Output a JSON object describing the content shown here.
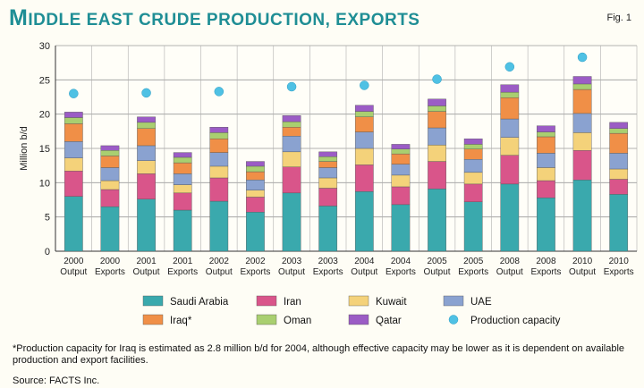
{
  "title_first": "M",
  "title_rest": "IDDLE EAST CRUDE PRODUCTION, EXPORTS",
  "fig_label": "Fig. 1",
  "footnote": "*Production capacity for Iraq is estimated as 2.8 million b/d for 2004, although effective capacity may be lower as it is dependent on available production and export facilities.",
  "source": "Source: FACTS Inc.",
  "chart_data": {
    "type": "bar",
    "stacked": true,
    "ylabel": "Million b/d",
    "ylim": [
      0,
      30
    ],
    "yticks": [
      0,
      5,
      10,
      15,
      20,
      25,
      30
    ],
    "grid": true,
    "categories": [
      [
        "2000",
        "Output"
      ],
      [
        "2000",
        "Exports"
      ],
      [
        "2001",
        "Output"
      ],
      [
        "2001",
        "Exports"
      ],
      [
        "2002",
        "Output"
      ],
      [
        "2002",
        "Exports"
      ],
      [
        "2003",
        "Output"
      ],
      [
        "2003",
        "Exports"
      ],
      [
        "2004",
        "Output"
      ],
      [
        "2004",
        "Exports"
      ],
      [
        "2005",
        "Output"
      ],
      [
        "2005",
        "Exports"
      ],
      [
        "2008",
        "Output"
      ],
      [
        "2008",
        "Exports"
      ],
      [
        "2010",
        "Output"
      ],
      [
        "2010",
        "Exports"
      ]
    ],
    "series": [
      {
        "name": "Saudi Arabia",
        "color": "#3aa9ad",
        "values": [
          8.0,
          6.5,
          7.6,
          6.0,
          7.3,
          5.7,
          8.5,
          6.6,
          8.7,
          6.8,
          9.1,
          7.2,
          9.8,
          7.8,
          10.4,
          8.3
        ]
      },
      {
        "name": "Iran",
        "color": "#d9558a",
        "values": [
          3.7,
          2.5,
          3.7,
          2.5,
          3.4,
          2.2,
          3.8,
          2.6,
          3.9,
          2.6,
          4.0,
          2.6,
          4.2,
          2.5,
          4.3,
          2.2
        ]
      },
      {
        "name": "Kuwait",
        "color": "#f4d27a",
        "values": [
          1.9,
          1.3,
          1.9,
          1.2,
          1.7,
          1.0,
          2.2,
          1.5,
          2.4,
          1.7,
          2.4,
          1.7,
          2.6,
          1.9,
          2.6,
          1.5
        ]
      },
      {
        "name": "UAE",
        "color": "#8aa2d0",
        "values": [
          2.4,
          1.9,
          2.2,
          1.6,
          2.0,
          1.5,
          2.3,
          1.5,
          2.4,
          1.6,
          2.5,
          1.9,
          2.7,
          2.1,
          2.8,
          2.3
        ]
      },
      {
        "name": "Iraq*",
        "color": "#f08f47",
        "values": [
          2.6,
          1.7,
          2.5,
          1.6,
          2.0,
          1.2,
          1.3,
          0.9,
          2.2,
          1.5,
          2.4,
          1.5,
          3.1,
          2.4,
          3.5,
          2.9
        ]
      },
      {
        "name": "Oman",
        "color": "#a9cf70",
        "values": [
          0.9,
          0.8,
          0.9,
          0.8,
          0.9,
          0.8,
          0.8,
          0.7,
          0.8,
          0.7,
          0.8,
          0.7,
          0.8,
          0.7,
          0.8,
          0.7
        ]
      },
      {
        "name": "Qatar",
        "color": "#9b5cc5",
        "values": [
          0.8,
          0.7,
          0.8,
          0.7,
          0.8,
          0.7,
          0.9,
          0.7,
          0.9,
          0.7,
          1.0,
          0.8,
          1.1,
          0.9,
          1.1,
          0.9
        ]
      }
    ],
    "capacity": {
      "name": "Production capacity",
      "color": "#4fc1e4",
      "values": [
        23.0,
        null,
        23.1,
        null,
        23.3,
        null,
        24.0,
        null,
        24.2,
        null,
        25.1,
        null,
        26.9,
        null,
        28.3,
        null
      ]
    },
    "legend_position": "bottom"
  }
}
